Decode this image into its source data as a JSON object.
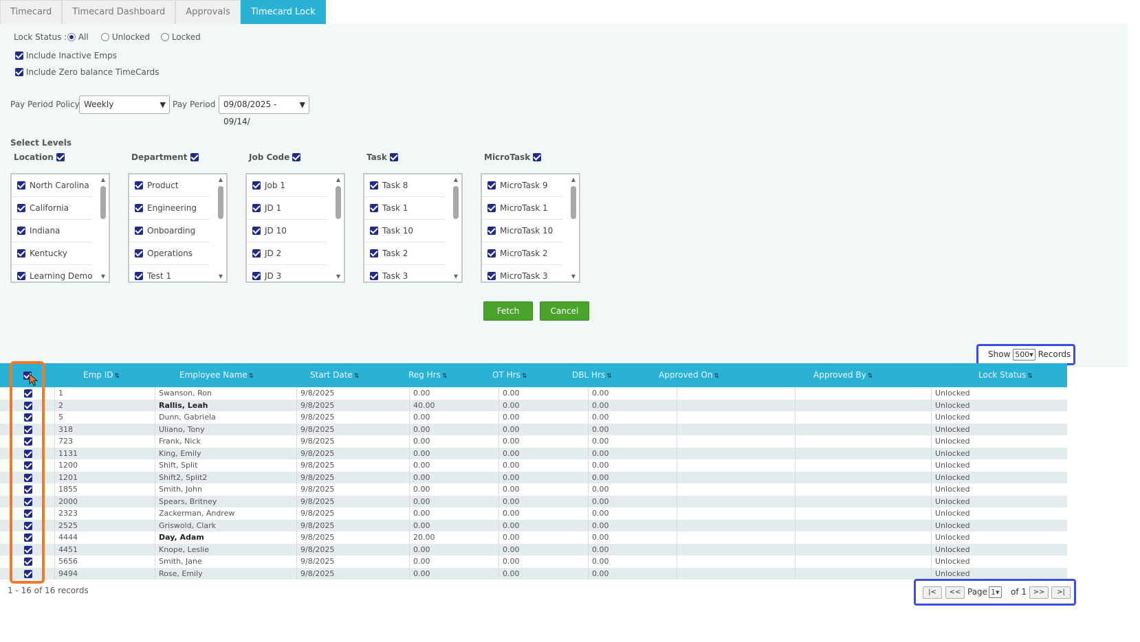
{
  "tabs": [
    "Timecard",
    "Timecard Dashboard",
    "Approvals",
    "Timecard Lock"
  ],
  "active_tab": "Timecard Lock",
  "filters": {
    "lock_status_label": "Lock Status :",
    "lock_options": [
      "All",
      "Unlocked",
      "Locked"
    ],
    "lock_selected": "All",
    "include_inactive": "Include Inactive Emps",
    "include_zero": "Include Zero balance TimeCards",
    "pay_period_policy_label": "Pay Period Policy",
    "pay_period_policy_value": "Weekly",
    "pay_period_label": "Pay Period",
    "pay_period_value": "09/08/2025 - 09/14/"
  },
  "levels": {
    "title": "Select Levels",
    "groups": [
      {
        "name": "Location",
        "items": [
          "North Carolina",
          "California",
          "Indiana",
          "Kentucky",
          "Learning Demo"
        ]
      },
      {
        "name": "Department",
        "items": [
          "Product",
          "Engineering",
          "Onboarding",
          "Operations",
          "Test 1"
        ]
      },
      {
        "name": "Job Code",
        "items": [
          "Job 1",
          "JD 1",
          "JD 10",
          "JD 2",
          "JD 3"
        ]
      },
      {
        "name": "Task",
        "items": [
          "Task 8",
          "Task 1",
          "Task 10",
          "Task 2",
          "Task 3"
        ]
      },
      {
        "name": "MicroTask",
        "items": [
          "MicroTask 9",
          "MicroTask 1",
          "MicroTask 10",
          "MicroTask 2",
          "MicroTask 3"
        ]
      }
    ]
  },
  "buttons": {
    "fetch": "Fetch",
    "cancel": "Cancel"
  },
  "records": {
    "show": "Show",
    "value": "500",
    "suffix": "Records"
  },
  "columns": [
    "Emp ID",
    "Employee Name",
    "Start Date",
    "Reg Hrs",
    "OT Hrs",
    "DBL Hrs",
    "Approved On",
    "Approved By",
    "Lock Status"
  ],
  "rows": [
    {
      "id": "1",
      "name": "Swanson, Ron",
      "start": "9/8/2025",
      "reg": "0.00",
      "ot": "0.00",
      "dbl": "0.00",
      "status": "Unlocked",
      "bold": false
    },
    {
      "id": "2",
      "name": "Rallis, Leah",
      "start": "9/8/2025",
      "reg": "40.00",
      "ot": "0.00",
      "dbl": "0.00",
      "status": "Unlocked",
      "bold": true
    },
    {
      "id": "5",
      "name": "Dunn, Gabriela",
      "start": "9/8/2025",
      "reg": "0.00",
      "ot": "0.00",
      "dbl": "0.00",
      "status": "Unlocked",
      "bold": false
    },
    {
      "id": "318",
      "name": "Uliano, Tony",
      "start": "9/8/2025",
      "reg": "0.00",
      "ot": "0.00",
      "dbl": "0.00",
      "status": "Unlocked",
      "bold": false
    },
    {
      "id": "723",
      "name": "Frank, Nick",
      "start": "9/8/2025",
      "reg": "0.00",
      "ot": "0.00",
      "dbl": "0.00",
      "status": "Unlocked",
      "bold": false
    },
    {
      "id": "1131",
      "name": "King, Emily",
      "start": "9/8/2025",
      "reg": "0.00",
      "ot": "0.00",
      "dbl": "0.00",
      "status": "Unlocked",
      "bold": false
    },
    {
      "id": "1200",
      "name": "Shift, Split",
      "start": "9/8/2025",
      "reg": "0.00",
      "ot": "0.00",
      "dbl": "0.00",
      "status": "Unlocked",
      "bold": false
    },
    {
      "id": "1201",
      "name": "Shift2, Split2",
      "start": "9/8/2025",
      "reg": "0.00",
      "ot": "0.00",
      "dbl": "0.00",
      "status": "Unlocked",
      "bold": false
    },
    {
      "id": "1855",
      "name": "Smith, John",
      "start": "9/8/2025",
      "reg": "0.00",
      "ot": "0.00",
      "dbl": "0.00",
      "status": "Unlocked",
      "bold": false
    },
    {
      "id": "2000",
      "name": "Spears, Britney",
      "start": "9/8/2025",
      "reg": "0.00",
      "ot": "0.00",
      "dbl": "0.00",
      "status": "Unlocked",
      "bold": false
    },
    {
      "id": "2323",
      "name": "Zackerman, Andrew",
      "start": "9/8/2025",
      "reg": "0.00",
      "ot": "0.00",
      "dbl": "0.00",
      "status": "Unlocked",
      "bold": false
    },
    {
      "id": "2525",
      "name": "Griswold, Clark",
      "start": "9/8/2025",
      "reg": "0.00",
      "ot": "0.00",
      "dbl": "0.00",
      "status": "Unlocked",
      "bold": false
    },
    {
      "id": "4444",
      "name": "Day, Adam",
      "start": "9/8/2025",
      "reg": "20.00",
      "ot": "0.00",
      "dbl": "0.00",
      "status": "Unlocked",
      "bold": true
    },
    {
      "id": "4451",
      "name": "Knope, Leslie",
      "start": "9/8/2025",
      "reg": "0.00",
      "ot": "0.00",
      "dbl": "0.00",
      "status": "Unlocked",
      "bold": false
    },
    {
      "id": "5656",
      "name": "Smith, Jane",
      "start": "9/8/2025",
      "reg": "0.00",
      "ot": "0.00",
      "dbl": "0.00",
      "status": "Unlocked",
      "bold": false
    },
    {
      "id": "9494",
      "name": "Rose, Emily",
      "start": "9/8/2025",
      "reg": "0.00",
      "ot": "0.00",
      "dbl": "0.00",
      "status": "Unlocked",
      "bold": false
    }
  ],
  "footer": {
    "count": "1 - 16 of 16 records"
  },
  "pager": {
    "first": "|<",
    "prev": "<<",
    "page_label": "Page",
    "page_value": "1",
    "of_label": "of 1",
    "next": ">>",
    "last": ">|"
  },
  "colors": {
    "accent": "#29b2d6",
    "highlight_orange": "#f07a2b",
    "highlight_blue": "#3b4de6",
    "button_green": "#4aa42c"
  }
}
